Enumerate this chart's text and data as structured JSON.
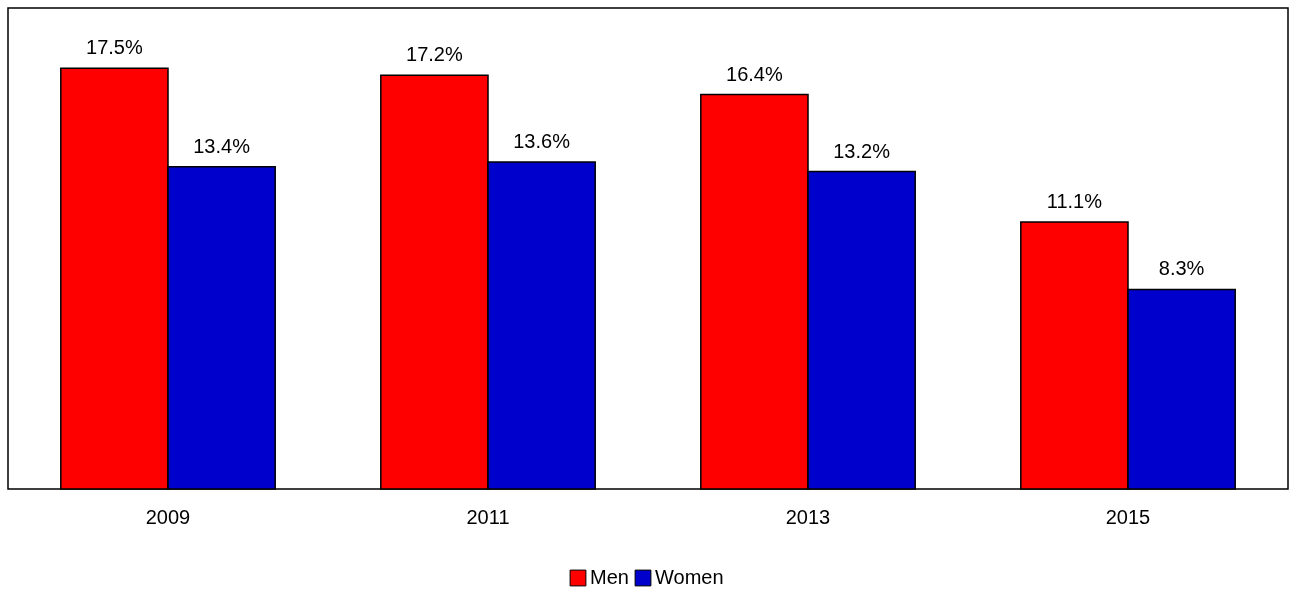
{
  "chart_data": {
    "type": "bar",
    "categories": [
      "2009",
      "2011",
      "2013",
      "2015"
    ],
    "series": [
      {
        "name": "Men",
        "color": "#ff0000",
        "values": [
          17.5,
          17.2,
          16.4,
          11.1
        ],
        "value_labels": [
          "17.5%",
          "17.2%",
          "16.4%",
          "11.1%"
        ]
      },
      {
        "name": "Women",
        "color": "#0000cc",
        "values": [
          13.4,
          13.6,
          13.2,
          8.3
        ],
        "value_labels": [
          "13.4%",
          "13.6%",
          "13.2%",
          "8.3%"
        ]
      }
    ],
    "ylim": [
      0,
      20
    ],
    "tick_labels": "x",
    "legend": "bottom"
  }
}
